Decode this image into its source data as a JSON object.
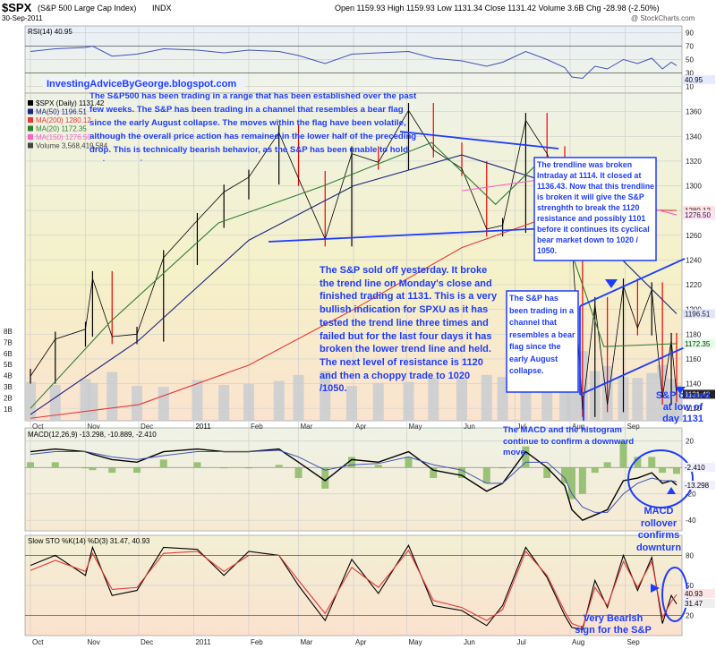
{
  "header": {
    "symbol": "$SPX",
    "name": "(S&P 500 Large Cap Index)",
    "exchange": "INDX",
    "date": "30-Sep-2011",
    "stats": "Open 1159.93  High 1159.93  Low 1131.34  Close 1131.42  Volume 3.6B  Chg -28.98 (-2.50%)",
    "credit": "@ StockCharts.com"
  },
  "colors": {
    "price_up": "#000000",
    "price_down": "#ee0000",
    "ma50": "#1a237e",
    "ma200": "#e53935",
    "ma20": "#2e7d32",
    "ma150": "#ff5fc8",
    "rsi": "#3f51b5",
    "macd": "#000000",
    "signal": "#3f51b5",
    "sto_k": "#000000",
    "sto_d": "#e53935",
    "annotation": "#1e3cff",
    "trendline": "#1e3cff",
    "volume": "#c8ccd0"
  },
  "rsi_panel": {
    "label": "RSI(14) 40.95",
    "axis": [
      "90",
      "70",
      "50",
      "40.95",
      "30",
      "10"
    ],
    "website": "InvestingAdviceByGeorge.blogspot.com"
  },
  "price_panel": {
    "legend": [
      {
        "label": "$SPX (Daily) 1131.42",
        "color": "#000000"
      },
      {
        "label": "MA(50) 1196.51",
        "color": "#1a237e"
      },
      {
        "label": "MA(200) 1280.12",
        "color": "#e53935"
      },
      {
        "label": "MA(20) 1172.35",
        "color": "#2e7d32"
      },
      {
        "label": "MA(150) 1276.50",
        "color": "#ff5fc8"
      },
      {
        "label": "Volume 3,568,419,584",
        "color": "#444444"
      }
    ],
    "price_axis": [
      "1360",
      "1340",
      "1320",
      "1300",
      "1280",
      "1260",
      "1240",
      "1220",
      "1200",
      "1180",
      "1160",
      "1140",
      "1120"
    ],
    "badges": [
      {
        "label": "1280.12",
        "value": 1280.12,
        "bg": "#ffe0e0"
      },
      {
        "label": "1276.50",
        "value": 1276.5,
        "bg": "#ffe0f4"
      },
      {
        "label": "1196.51",
        "value": 1196.51,
        "bg": "#e0e4ff"
      },
      {
        "label": "1172.35",
        "value": 1172.35,
        "bg": "#e0ffe0"
      },
      {
        "label": "1131.42",
        "value": 1131.42,
        "bg": "#222222"
      }
    ],
    "volume_axis": [
      "8B",
      "7B",
      "6B",
      "5B",
      "4B",
      "3B",
      "2B",
      "1B"
    ],
    "month_labels": [
      "Oct",
      "Nov",
      "Dec",
      "2011",
      "Feb",
      "Mar",
      "Apr",
      "May",
      "Jun",
      "Jul",
      "Aug",
      "Sep"
    ]
  },
  "annotations": {
    "intro": "The S&P500 has been trading in a range that has been established over the past few weeks. The S&P has been trading in a channel that resembles a bear flag since the early August collapse. The moves within the flag have been volatile, although the overall price action has remained in the lower half of the preceding drop. This is technically bearish behavior, as the S&P has been unable to hold on to any gains.",
    "trendline": "The trendline was broken Intraday at 1114. It closed at 1136.43. Now that this trendline is broken it will give the S&P strenghth to break the 1120 resistance and possibly 1101 before it continues its cyclical bear market down to 1020 / 1050.",
    "sold_off": "The S&P sold off yesterday. It broke the trend line on Monday's close and finished trading at 1131. This is a very bullish indication for SPXU as it has tested the trend line three times and failed but for the last four days it has broken the lower trend line and held. The next level of resistance is 1120 and then a choppy trade to 1020 /1050.",
    "channel": "The S&P has been trading in a channel that resembles a bear flag since the early August collapse.",
    "closed_low": "S&P closed at low of day 1131",
    "macd_confirm": "The MACD and the histogram continue to confirm a downward move.",
    "macd_rollover": "MACD rollover confirms downturn",
    "bearish_sign": "Very Bearish sign for the S&P"
  },
  "macd_panel": {
    "label": "MACD(12,26,9) -13.298, -10.889, -2.410",
    "axis": [
      "20",
      "0",
      "-2.410",
      "-13.298",
      "-20",
      "-40"
    ]
  },
  "sto_panel": {
    "label": "Slow STO %K(14) %D(3) 31.47, 40.93",
    "axis": [
      "80",
      "50",
      "40.93",
      "31.47",
      "20"
    ],
    "month_labels": [
      "Oct",
      "Nov",
      "Dec",
      "2011",
      "Feb",
      "Mar",
      "Apr",
      "May",
      "Jun",
      "Jul",
      "Aug",
      "Sep"
    ]
  },
  "chart_data": {
    "type": "line",
    "title": "$SPX (S&P 500 Large Cap Index)",
    "x_range": [
      "2010-10-01",
      "2011-09-30"
    ],
    "price": {
      "ylim": [
        1110,
        1375
      ],
      "x": [
        "2010-10-01",
        "2010-10-15",
        "2010-11-01",
        "2010-11-05",
        "2010-11-16",
        "2010-11-30",
        "2010-12-15",
        "2011-01-03",
        "2011-01-18",
        "2011-02-01",
        "2011-02-18",
        "2011-03-01",
        "2011-03-16",
        "2011-03-31",
        "2011-04-15",
        "2011-05-02",
        "2011-05-16",
        "2011-06-01",
        "2011-06-15",
        "2011-06-24",
        "2011-07-07",
        "2011-07-19",
        "2011-07-29",
        "2011-08-02",
        "2011-08-08",
        "2011-08-15",
        "2011-08-22",
        "2011-08-31",
        "2011-09-08",
        "2011-09-16",
        "2011-09-22",
        "2011-09-27",
        "2011-09-30"
      ],
      "close": [
        1146,
        1176,
        1184,
        1225,
        1178,
        1180,
        1242,
        1272,
        1295,
        1307,
        1343,
        1306,
        1257,
        1326,
        1319,
        1361,
        1329,
        1314,
        1265,
        1268,
        1353,
        1326,
        1292,
        1255,
        1119,
        1204,
        1123,
        1219,
        1185,
        1216,
        1129,
        1175,
        1131
      ]
    },
    "moving_averages": [
      {
        "name": "MA(50)",
        "x": [
          "2010-10-01",
          "2010-12-01",
          "2011-02-01",
          "2011-04-01",
          "2011-06-01",
          "2011-07-15",
          "2011-08-15",
          "2011-09-30"
        ],
        "values": [
          1115,
          1175,
          1256,
          1300,
          1325,
          1305,
          1262,
          1196.51
        ]
      },
      {
        "name": "MA(200)",
        "x": [
          "2010-10-01",
          "2010-12-01",
          "2011-02-01",
          "2011-04-01",
          "2011-06-01",
          "2011-08-01",
          "2011-09-30"
        ],
        "values": [
          1112,
          1123,
          1155,
          1200,
          1250,
          1281,
          1280.12
        ]
      },
      {
        "name": "MA(20)",
        "x": [
          "2010-10-01",
          "2010-11-15",
          "2011-01-15",
          "2011-03-15",
          "2011-05-15",
          "2011-06-20",
          "2011-07-15",
          "2011-08-20",
          "2011-09-30"
        ],
        "values": [
          1120,
          1190,
          1270,
          1300,
          1335,
          1285,
          1320,
          1170,
          1172.35
        ]
      },
      {
        "name": "MA(150)",
        "x": [
          "2011-06-01",
          "2011-07-15",
          "2011-09-30"
        ],
        "values": [
          1296,
          1305,
          1276.5
        ]
      }
    ],
    "volume_billions": [
      3.9,
      3.6,
      4.2,
      3.8,
      4.9,
      3.5,
      3.4,
      4.1,
      3.6,
      3.7,
      4.0,
      4.6,
      5.0,
      3.5,
      3.8,
      3.9,
      4.3,
      4.2,
      4.6,
      4.4,
      3.8,
      3.9,
      4.4,
      5.2,
      7.0,
      5.0,
      5.5,
      4.4,
      4.3,
      4.8,
      5.6,
      4.2,
      3.6
    ],
    "rsi": {
      "ylim": [
        0,
        100
      ],
      "values": [
        62,
        66,
        68,
        70,
        55,
        58,
        66,
        64,
        60,
        64,
        62,
        56,
        44,
        58,
        60,
        62,
        52,
        48,
        40,
        46,
        62,
        50,
        38,
        24,
        22,
        40,
        36,
        50,
        44,
        52,
        36,
        46,
        40.95
      ]
    },
    "macd": {
      "ylim": [
        -48,
        30
      ],
      "values": [
        12,
        14,
        12,
        10,
        6,
        4,
        12,
        14,
        12,
        12,
        14,
        4,
        -10,
        6,
        4,
        12,
        -2,
        -6,
        -18,
        -12,
        12,
        0,
        -14,
        -32,
        -40,
        -36,
        -32,
        -10,
        -8,
        -4,
        -12,
        -10,
        -13.298
      ],
      "signal": [
        10,
        12,
        12,
        11,
        8,
        6,
        9,
        12,
        12,
        12,
        13,
        8,
        -2,
        2,
        3,
        8,
        2,
        -2,
        -12,
        -12,
        4,
        4,
        -8,
        -20,
        -30,
        -34,
        -34,
        -20,
        -12,
        -8,
        -10,
        -10,
        -10.889
      ]
    },
    "stochastic": {
      "ylim": [
        0,
        100
      ],
      "k": [
        70,
        80,
        60,
        88,
        40,
        45,
        88,
        86,
        60,
        84,
        80,
        50,
        15,
        76,
        42,
        90,
        30,
        25,
        10,
        30,
        88,
        58,
        20,
        8,
        6,
        55,
        28,
        80,
        45,
        78,
        12,
        40,
        31.47
      ],
      "d": [
        65,
        75,
        64,
        82,
        46,
        48,
        82,
        84,
        64,
        80,
        80,
        55,
        22,
        68,
        48,
        85,
        35,
        28,
        15,
        26,
        84,
        60,
        24,
        12,
        8,
        48,
        30,
        74,
        48,
        74,
        18,
        34,
        40.93
      ]
    }
  }
}
